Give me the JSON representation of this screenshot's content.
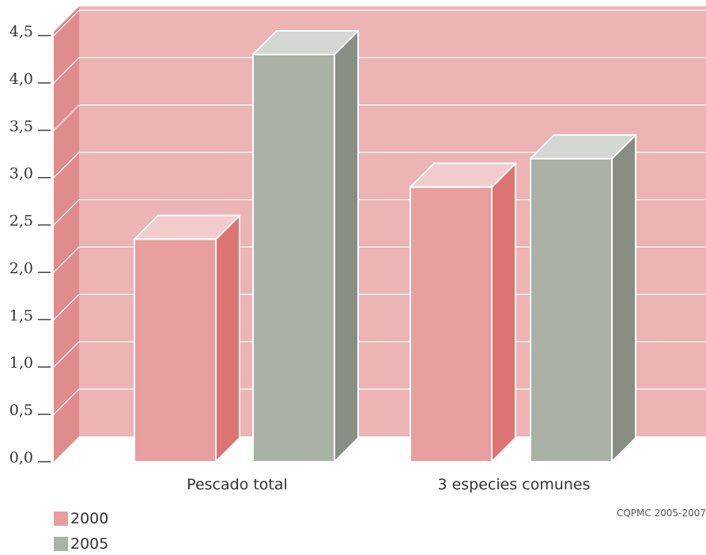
{
  "chart_data": {
    "type": "bar",
    "categories": [
      "Pescado total",
      "3 especies comunes"
    ],
    "series": [
      {
        "name": "2000",
        "values": [
          2.35,
          2.9
        ]
      },
      {
        "name": "2005",
        "values": [
          4.3,
          3.2
        ]
      }
    ],
    "ylim": [
      0,
      4.5
    ],
    "yticks": [
      "0,0",
      "0,5",
      "1,0",
      "1,5",
      "2,0",
      "2,5",
      "3,0",
      "3,5",
      "4,0",
      "4,5"
    ],
    "grid": true,
    "legend_position": "bottom-left"
  },
  "colors": {
    "background_wall": "#ecb4b4",
    "left_wall": "#e08c8c",
    "series_2000_front": "#e89e9e",
    "series_2000_top": "#f2cccc",
    "series_2000_side": "#dc7474",
    "series_2005_front": "#aab1a6",
    "series_2005_top": "#d2d8d1",
    "series_2005_side": "#878e83"
  },
  "legend": [
    {
      "label": "2000",
      "color": "#e89e9e"
    },
    {
      "label": "2005",
      "color": "#aab1a6"
    }
  ],
  "credit": "CQPMC 2005-2007"
}
